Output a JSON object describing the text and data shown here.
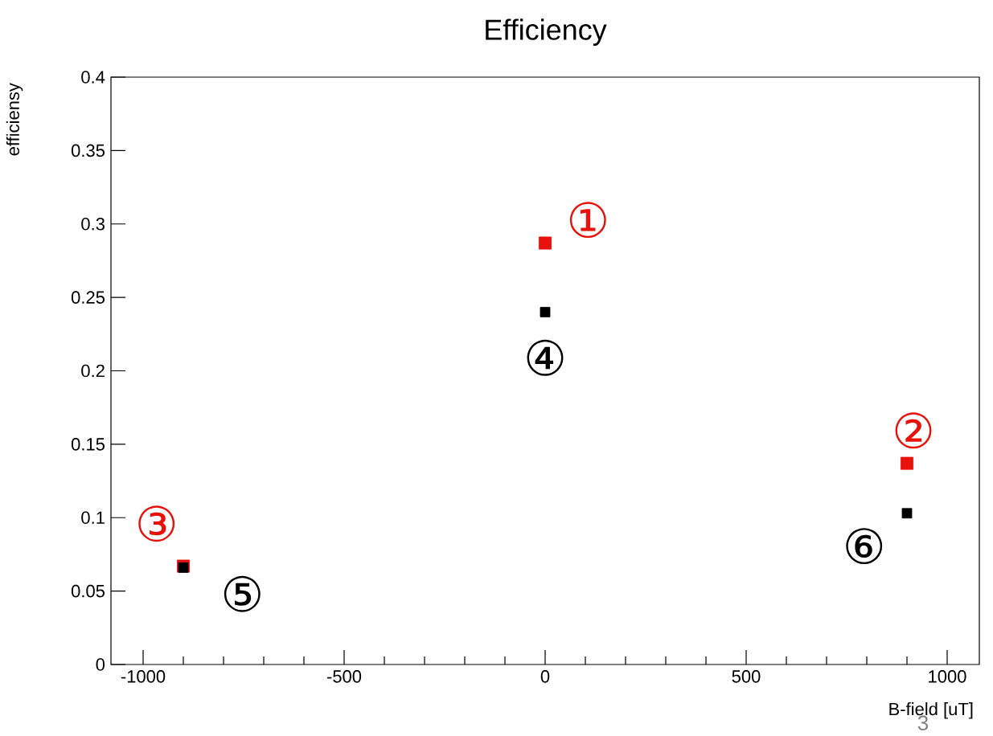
{
  "chart_data": {
    "type": "scatter",
    "title": "Efficiency",
    "xlabel": "B-field [uT]",
    "ylabel": "efficiensy",
    "series": [
      {
        "color": "#e8120c",
        "x": [
          -900,
          0,
          900
        ],
        "values": [
          0.067,
          0.287,
          0.137
        ]
      },
      {
        "color": "#000000",
        "x": [
          -900,
          0,
          900
        ],
        "values": [
          0.066,
          0.24,
          0.103
        ]
      }
    ],
    "marker": "square",
    "grid": false,
    "xlim": [
      -1080,
      1080
    ],
    "ylim": [
      0,
      0.4
    ],
    "xticks": [
      -1000,
      -500,
      0,
      500,
      1000
    ],
    "yticks": [
      0,
      0.05,
      0.1,
      0.15,
      0.2,
      0.25,
      0.3,
      0.35,
      0.4
    ],
    "annotations": [
      {
        "text": "①",
        "x": 0,
        "y": 0.287
      },
      {
        "text": "②",
        "x": 900,
        "y": 0.137
      },
      {
        "text": "③",
        "x": -900,
        "y": 0.067
      },
      {
        "text": "④",
        "x": 0,
        "y": 0.24
      },
      {
        "text": "⑤",
        "x": -900,
        "y": 0.066
      },
      {
        "text": "⑥",
        "x": 900,
        "y": 0.103
      },
      "3"
    ]
  }
}
